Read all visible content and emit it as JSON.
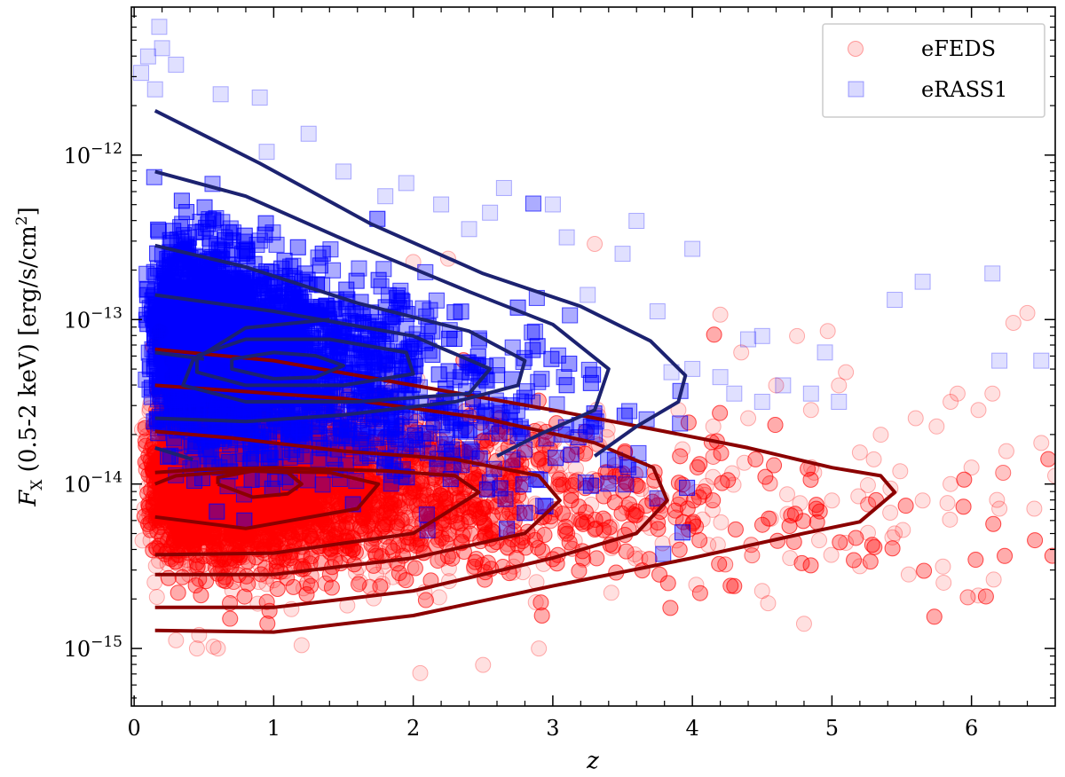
{
  "chart_data": {
    "type": "scatter",
    "xlabel": "z",
    "ylabel": {
      "symbol": "F",
      "sub": "X",
      "text": " (0.5-2 keV) [erg/s/cm",
      "sup": "2",
      "close": "]"
    },
    "x_ticks": [
      {
        "v": 0,
        "label": "0"
      },
      {
        "v": 1,
        "label": "1"
      },
      {
        "v": 2,
        "label": "2"
      },
      {
        "v": 3,
        "label": "3"
      },
      {
        "v": 4,
        "label": "4"
      },
      {
        "v": 5,
        "label": "5"
      },
      {
        "v": 6,
        "label": "6"
      }
    ],
    "y_ticks": [
      {
        "v": -15,
        "base": "10",
        "exp": "−15"
      },
      {
        "v": -14,
        "base": "10",
        "exp": "−14"
      },
      {
        "v": -13,
        "base": "10",
        "exp": "−13"
      },
      {
        "v": -12,
        "base": "10",
        "exp": "−12"
      }
    ],
    "xlim": [
      -0.02,
      6.6
    ],
    "ylim_log10": [
      -15.35,
      -11.1
    ],
    "yscale": "log",
    "legend": {
      "position": "top-right",
      "entries": [
        {
          "label": "eFEDS",
          "marker": "circle",
          "color": "#ff0000"
        },
        {
          "label": "eRASS1",
          "marker": "square",
          "color": "#0000ff"
        }
      ]
    },
    "series": [
      {
        "name": "eFEDS",
        "marker": "circle",
        "color": "#ff0000",
        "density": {
          "count": 9000,
          "z_median": 0.9,
          "z_sigma": 0.8,
          "logF_mean": -14.0,
          "logF_sigma": 0.25,
          "z_max": 6.6
        },
        "points": [
          [
            2.0,
            -12.65
          ],
          [
            2.25,
            -12.63
          ],
          [
            3.3,
            -12.54
          ],
          [
            4.2,
            -12.97
          ],
          [
            4.75,
            -13.1
          ],
          [
            4.97,
            -13.07
          ],
          [
            6.4,
            -12.96
          ],
          [
            6.3,
            -13.02
          ],
          [
            5.1,
            -13.32
          ],
          [
            5.9,
            -13.45
          ],
          [
            6.15,
            -13.45
          ],
          [
            5.6,
            -13.6
          ],
          [
            5.85,
            -13.5
          ],
          [
            6.05,
            -13.55
          ],
          [
            6.5,
            -13.75
          ],
          [
            6.25,
            -13.8
          ],
          [
            5.05,
            -13.4
          ],
          [
            4.35,
            -13.2
          ],
          [
            4.6,
            -13.4
          ],
          [
            4.85,
            -13.55
          ],
          [
            5.3,
            -13.85
          ],
          [
            5.75,
            -13.65
          ],
          [
            6.6,
            -13.95
          ],
          [
            6.45,
            -14.15
          ],
          [
            5.45,
            -14.3
          ],
          [
            5.0,
            -14.1
          ],
          [
            4.7,
            -14.45
          ],
          [
            4.5,
            -14.65
          ],
          [
            4.8,
            -14.85
          ],
          [
            5.2,
            -14.5
          ],
          [
            5.8,
            -14.6
          ],
          [
            5.55,
            -14.55
          ],
          [
            6.2,
            -14.15
          ],
          [
            5.85,
            -14.0
          ],
          [
            5.65,
            -14.1
          ],
          [
            2.05,
            -15.15
          ],
          [
            2.5,
            -15.1
          ],
          [
            2.9,
            -15.0
          ],
          [
            0.6,
            -15.0
          ],
          [
            0.3,
            -14.95
          ],
          [
            1.2,
            -14.98
          ],
          [
            0.45,
            -15.0
          ],
          [
            4.15,
            -13.65
          ],
          [
            4.4,
            -13.6
          ],
          [
            3.9,
            -13.55
          ],
          [
            5.35,
            -13.7
          ],
          [
            6.0,
            -13.9
          ]
        ],
        "contours": [
          [
            [
              0.15,
              -14.89
            ],
            [
              1,
              -14.9
            ],
            [
              2,
              -14.8
            ],
            [
              3,
              -14.62
            ],
            [
              4,
              -14.45
            ],
            [
              4.8,
              -14.3
            ],
            [
              5.2,
              -14.23
            ],
            [
              5.45,
              -14.05
            ],
            [
              5.35,
              -13.95
            ],
            [
              5,
              -13.9
            ],
            [
              4.4,
              -13.78
            ],
            [
              3.8,
              -13.68
            ],
            [
              3,
              -13.55
            ],
            [
              2,
              -13.4
            ],
            [
              1,
              -13.25
            ],
            [
              0.15,
              -13.18
            ]
          ],
          [
            [
              0.15,
              -14.75
            ],
            [
              1,
              -14.75
            ],
            [
              2,
              -14.65
            ],
            [
              3,
              -14.45
            ],
            [
              3.6,
              -14.3
            ],
            [
              3.82,
              -14.1
            ],
            [
              3.72,
              -13.9
            ],
            [
              3.3,
              -13.75
            ],
            [
              2.5,
              -13.6
            ],
            [
              1.5,
              -13.48
            ],
            [
              0.5,
              -13.42
            ],
            [
              0.15,
              -13.4
            ]
          ],
          [
            [
              0.15,
              -14.55
            ],
            [
              1,
              -14.55
            ],
            [
              2,
              -14.45
            ],
            [
              2.8,
              -14.3
            ],
            [
              3.05,
              -14.1
            ],
            [
              2.9,
              -13.95
            ],
            [
              2.3,
              -13.85
            ],
            [
              1.5,
              -13.8
            ],
            [
              0.7,
              -13.72
            ],
            [
              0.15,
              -13.68
            ]
          ],
          [
            [
              0.15,
              -14.43
            ],
            [
              1,
              -14.42
            ],
            [
              2,
              -14.3
            ],
            [
              2.47,
              -14.05
            ],
            [
              2.3,
              -13.95
            ],
            [
              1.8,
              -13.92
            ],
            [
              1,
              -13.9
            ],
            [
              0.5,
              -13.91
            ],
            [
              0.15,
              -13.93
            ]
          ],
          [
            [
              0.15,
              -14.2
            ],
            [
              0.8,
              -14.27
            ],
            [
              1.6,
              -14.15
            ],
            [
              1.75,
              -14.0
            ],
            [
              1.4,
              -13.93
            ],
            [
              0.8,
              -13.92
            ],
            [
              0.3,
              -13.95
            ],
            [
              0.15,
              -14.0
            ]
          ],
          [
            [
              0.6,
              -14.0
            ],
            [
              0.85,
              -14.08
            ],
            [
              1.1,
              -14.06
            ],
            [
              1.2,
              -14.0
            ],
            [
              1.1,
              -13.93
            ],
            [
              0.85,
              -13.92
            ],
            [
              0.6,
              -13.96
            ],
            [
              0.6,
              -14.0
            ]
          ]
        ]
      },
      {
        "name": "eRASS1",
        "marker": "square",
        "color": "#0000ff",
        "density": {
          "count": 9000,
          "z_median": 0.75,
          "z_sigma": 0.7,
          "logF_mean": -13.2,
          "logF_sigma": 0.3,
          "z_max": 4.0
        },
        "points": [
          [
            0.18,
            -11.22
          ],
          [
            0.1,
            -11.4
          ],
          [
            0.2,
            -11.35
          ],
          [
            0.05,
            -11.5
          ],
          [
            0.15,
            -11.6
          ],
          [
            0.3,
            -11.45
          ],
          [
            0.62,
            -11.63
          ],
          [
            0.9,
            -11.65
          ],
          [
            1.25,
            -11.87
          ],
          [
            0.95,
            -11.98
          ],
          [
            1.5,
            -12.1
          ],
          [
            1.95,
            -12.17
          ],
          [
            2.2,
            -12.3
          ],
          [
            2.55,
            -12.35
          ],
          [
            3.0,
            -12.3
          ],
          [
            3.1,
            -12.5
          ],
          [
            3.6,
            -12.4
          ],
          [
            4.0,
            -12.57
          ],
          [
            3.25,
            -12.85
          ],
          [
            3.75,
            -12.95
          ],
          [
            4.4,
            -13.12
          ],
          [
            4.5,
            -13.1
          ],
          [
            4.95,
            -13.2
          ],
          [
            6.15,
            -12.72
          ],
          [
            5.65,
            -12.77
          ],
          [
            5.45,
            -12.88
          ],
          [
            6.2,
            -13.25
          ],
          [
            6.5,
            -13.25
          ],
          [
            4.65,
            -13.4
          ],
          [
            4.85,
            -13.45
          ],
          [
            5.05,
            -13.5
          ],
          [
            4.2,
            -13.35
          ],
          [
            4.3,
            -13.45
          ],
          [
            4.0,
            -13.3
          ],
          [
            3.85,
            -13.32
          ],
          [
            4.5,
            -13.5
          ],
          [
            3.5,
            -12.6
          ],
          [
            2.65,
            -12.2
          ],
          [
            2.4,
            -12.45
          ],
          [
            1.8,
            -12.25
          ]
        ],
        "contours": [
          [
            [
              0.15,
              -11.73
            ],
            [
              0.9,
              -12.05
            ],
            [
              1.7,
              -12.42
            ],
            [
              2.5,
              -12.72
            ],
            [
              3.2,
              -12.92
            ],
            [
              3.7,
              -13.13
            ],
            [
              3.95,
              -13.34
            ],
            [
              3.9,
              -13.5
            ],
            [
              3.6,
              -13.65
            ],
            [
              3.3,
              -13.83
            ]
          ],
          [
            [
              0.15,
              -12.1
            ],
            [
              0.8,
              -12.25
            ],
            [
              1.6,
              -12.55
            ],
            [
              2.4,
              -12.83
            ],
            [
              3.0,
              -13.03
            ],
            [
              3.4,
              -13.3
            ],
            [
              3.3,
              -13.55
            ],
            [
              2.9,
              -13.7
            ],
            [
              2.6,
              -13.83
            ]
          ],
          [
            [
              0.15,
              -12.55
            ],
            [
              0.8,
              -12.68
            ],
            [
              1.6,
              -12.9
            ],
            [
              2.4,
              -13.07
            ],
            [
              2.8,
              -13.25
            ],
            [
              2.75,
              -13.4
            ],
            [
              2.3,
              -13.5
            ],
            [
              1.5,
              -13.58
            ],
            [
              0.8,
              -13.62
            ],
            [
              0.15,
              -13.6
            ]
          ],
          [
            [
              0.15,
              -12.85
            ],
            [
              1.0,
              -12.95
            ],
            [
              2.0,
              -13.1
            ],
            [
              2.55,
              -13.3
            ],
            [
              2.4,
              -13.45
            ],
            [
              1.6,
              -13.5
            ],
            [
              0.8,
              -13.5
            ],
            [
              0.35,
              -13.4
            ],
            [
              0.42,
              -13.25
            ],
            [
              0.8,
              -13.05
            ],
            [
              1.4,
              -13.0
            ]
          ],
          [
            [
              0.45,
              -13.22
            ],
            [
              0.8,
              -13.12
            ],
            [
              1.4,
              -13.12
            ],
            [
              1.95,
              -13.2
            ],
            [
              2.0,
              -13.33
            ],
            [
              1.5,
              -13.4
            ],
            [
              0.8,
              -13.4
            ],
            [
              0.45,
              -13.32
            ],
            [
              0.45,
              -13.22
            ]
          ],
          [
            [
              0.7,
              -13.24
            ],
            [
              1.0,
              -13.2
            ],
            [
              1.3,
              -13.22
            ],
            [
              1.5,
              -13.28
            ],
            [
              1.3,
              -13.35
            ],
            [
              1.0,
              -13.36
            ],
            [
              0.7,
              -13.3
            ],
            [
              0.7,
              -13.24
            ]
          ],
          [
            [
              0.15,
              -13.2
            ],
            [
              0.5,
              -13.24
            ]
          ],
          [
            [
              0.15,
              -13.78
            ],
            [
              0.42,
              -13.85
            ]
          ]
        ]
      }
    ],
    "contour_colors": {
      "eFEDS": "#8b0000",
      "eRASS1": "#1c2270"
    }
  }
}
